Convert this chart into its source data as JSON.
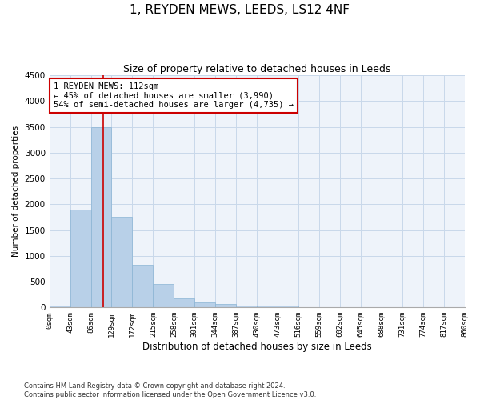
{
  "title": "1, REYDEN MEWS, LEEDS, LS12 4NF",
  "subtitle": "Size of property relative to detached houses in Leeds",
  "xlabel": "Distribution of detached houses by size in Leeds",
  "ylabel": "Number of detached properties",
  "footer_line1": "Contains HM Land Registry data © Crown copyright and database right 2024.",
  "footer_line2": "Contains public sector information licensed under the Open Government Licence v3.0.",
  "bar_color": "#b8d0e8",
  "bar_edge_color": "#8ab4d4",
  "grid_color": "#c8d8ea",
  "background_color": "#eef3fa",
  "vline_x": 112,
  "vline_color": "#cc0000",
  "annotation_line1": "1 REYDEN MEWS: 112sqm",
  "annotation_line2": "← 45% of detached houses are smaller (3,990)",
  "annotation_line3": "54% of semi-detached houses are larger (4,735) →",
  "annotation_box_color": "#cc0000",
  "ylim": [
    0,
    4500
  ],
  "yticks": [
    0,
    500,
    1000,
    1500,
    2000,
    2500,
    3000,
    3500,
    4000,
    4500
  ],
  "bin_edges": [
    0,
    43,
    86,
    129,
    172,
    215,
    258,
    301,
    344,
    387,
    430,
    473,
    516,
    559,
    602,
    645,
    688,
    731,
    774,
    817,
    860
  ],
  "bar_heights": [
    30,
    1900,
    3500,
    1750,
    830,
    450,
    175,
    100,
    60,
    40,
    30,
    30,
    0,
    0,
    0,
    0,
    0,
    0,
    0,
    0
  ],
  "title_fontsize": 11,
  "subtitle_fontsize": 9,
  "xlabel_fontsize": 8.5,
  "ylabel_fontsize": 7.5,
  "xtick_fontsize": 6.5,
  "ytick_fontsize": 7.5,
  "annotation_fontsize": 7.5,
  "footer_fontsize": 6
}
